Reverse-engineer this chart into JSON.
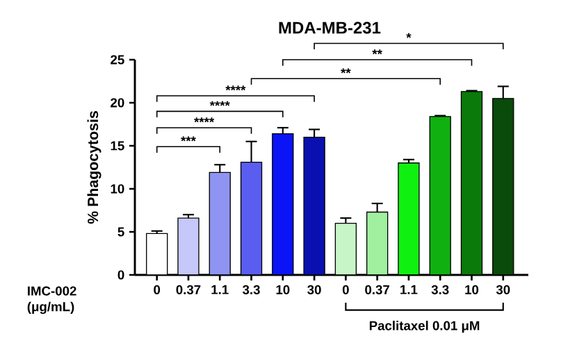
{
  "chart_data": {
    "type": "bar",
    "title": "MDA-MB-231",
    "ylabel": "% Phagocytosis",
    "xlabel": "IMC-002 (μg/mL)",
    "categories": [
      "0",
      "0.37",
      "1.1",
      "3.3",
      "10",
      "30",
      "0",
      "0.37",
      "1.1",
      "3.3",
      "10",
      "30"
    ],
    "values": [
      4.8,
      6.6,
      11.9,
      13.1,
      16.4,
      16.0,
      6.0,
      7.3,
      13.0,
      18.4,
      21.3,
      20.5
    ],
    "errors": [
      0.3,
      0.4,
      0.9,
      2.4,
      0.7,
      0.9,
      0.6,
      1.0,
      0.4,
      0.1,
      0.1,
      1.4
    ],
    "colors": [
      "#ffffff",
      "#c5c8f8",
      "#8f93f2",
      "#5a5ef0",
      "#0a14f5",
      "#0a10b0",
      "#c8f5c8",
      "#a0f0a0",
      "#10f010",
      "#10b010",
      "#0a7a0a",
      "#0a4a0a"
    ],
    "ylim": [
      0,
      25
    ],
    "yticks": [
      0,
      5,
      10,
      15,
      20,
      25
    ],
    "annotations": [
      "***",
      "****",
      "****",
      "****",
      "**",
      "**",
      "*",
      "Paclitaxel 0.01 μM"
    ]
  }
}
